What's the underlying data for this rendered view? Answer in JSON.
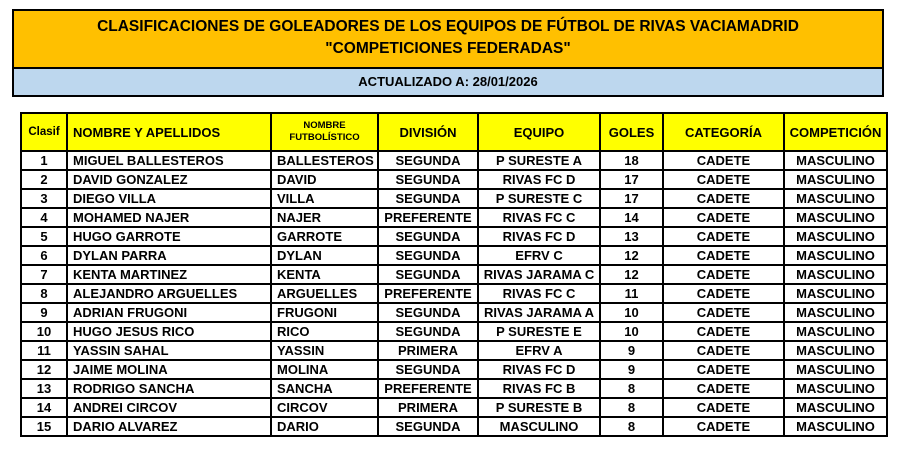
{
  "banner": {
    "title_line1": "CLASIFICACIONES DE GOLEADORES DE LOS EQUIPOS DE FÚTBOL DE RIVAS VACIAMADRID",
    "title_line2": "\"COMPETICIONES FEDERADAS\"",
    "updated": "ACTUALIZADO A: 28/01/2026"
  },
  "colors": {
    "banner_bg": "#FFC000",
    "updated_bg": "#BDD7EE",
    "table_header_bg": "#FFFF00",
    "border": "#000000",
    "text": "#000000"
  },
  "table": {
    "columns": [
      {
        "key": "clasif",
        "label": "Clasif"
      },
      {
        "key": "nombre",
        "label": "NOMBRE Y APELLIDOS"
      },
      {
        "key": "futbolistico",
        "label": "NOMBRE FUTBOLÍSTICO"
      },
      {
        "key": "division",
        "label": "DIVISIÓN"
      },
      {
        "key": "equipo",
        "label": "EQUIPO"
      },
      {
        "key": "goles",
        "label": "GOLES"
      },
      {
        "key": "categoria",
        "label": "CATEGORÍA"
      },
      {
        "key": "competicion",
        "label": "COMPETICIÓN"
      }
    ],
    "rows": [
      [
        "1",
        "MIGUEL BALLESTEROS",
        "BALLESTEROS",
        "SEGUNDA",
        "P SURESTE A",
        "18",
        "CADETE",
        "MASCULINO"
      ],
      [
        "2",
        "DAVID GONZALEZ",
        "DAVID",
        "SEGUNDA",
        "RIVAS FC D",
        "17",
        "CADETE",
        "MASCULINO"
      ],
      [
        "3",
        "DIEGO VILLA",
        "VILLA",
        "SEGUNDA",
        "P SURESTE C",
        "17",
        "CADETE",
        "MASCULINO"
      ],
      [
        "4",
        "MOHAMED NAJER",
        "NAJER",
        "PREFERENTE",
        "RIVAS FC C",
        "14",
        "CADETE",
        "MASCULINO"
      ],
      [
        "5",
        "HUGO GARROTE",
        "GARROTE",
        "SEGUNDA",
        "RIVAS FC D",
        "13",
        "CADETE",
        "MASCULINO"
      ],
      [
        "6",
        "DYLAN PARRA",
        "DYLAN",
        "SEGUNDA",
        "EFRV C",
        "12",
        "CADETE",
        "MASCULINO"
      ],
      [
        "7",
        "KENTA MARTINEZ",
        "KENTA",
        "SEGUNDA",
        "RIVAS JARAMA C",
        "12",
        "CADETE",
        "MASCULINO"
      ],
      [
        "8",
        "ALEJANDRO ARGUELLES",
        "ARGUELLES",
        "PREFERENTE",
        "RIVAS FC C",
        "11",
        "CADETE",
        "MASCULINO"
      ],
      [
        "9",
        "ADRIAN FRUGONI",
        "FRUGONI",
        "SEGUNDA",
        "RIVAS JARAMA A",
        "10",
        "CADETE",
        "MASCULINO"
      ],
      [
        "10",
        "HUGO JESUS RICO",
        "RICO",
        "SEGUNDA",
        "P SURESTE E",
        "10",
        "CADETE",
        "MASCULINO"
      ],
      [
        "11",
        "YASSIN SAHAL",
        "YASSIN",
        "PRIMERA",
        "EFRV A",
        "9",
        "CADETE",
        "MASCULINO"
      ],
      [
        "12",
        "JAIME MOLINA",
        "MOLINA",
        "SEGUNDA",
        "RIVAS FC D",
        "9",
        "CADETE",
        "MASCULINO"
      ],
      [
        "13",
        "RODRIGO SANCHA",
        "SANCHA",
        "PREFERENTE",
        "RIVAS FC B",
        "8",
        "CADETE",
        "MASCULINO"
      ],
      [
        "14",
        "ANDREI CIRCOV",
        "CIRCOV",
        "PRIMERA",
        "P SURESTE B",
        "8",
        "CADETE",
        "MASCULINO"
      ],
      [
        "15",
        "DARIO ALVAREZ",
        "DARIO",
        "SEGUNDA",
        "MASCULINO",
        "8",
        "CADETE",
        "MASCULINO"
      ]
    ]
  }
}
